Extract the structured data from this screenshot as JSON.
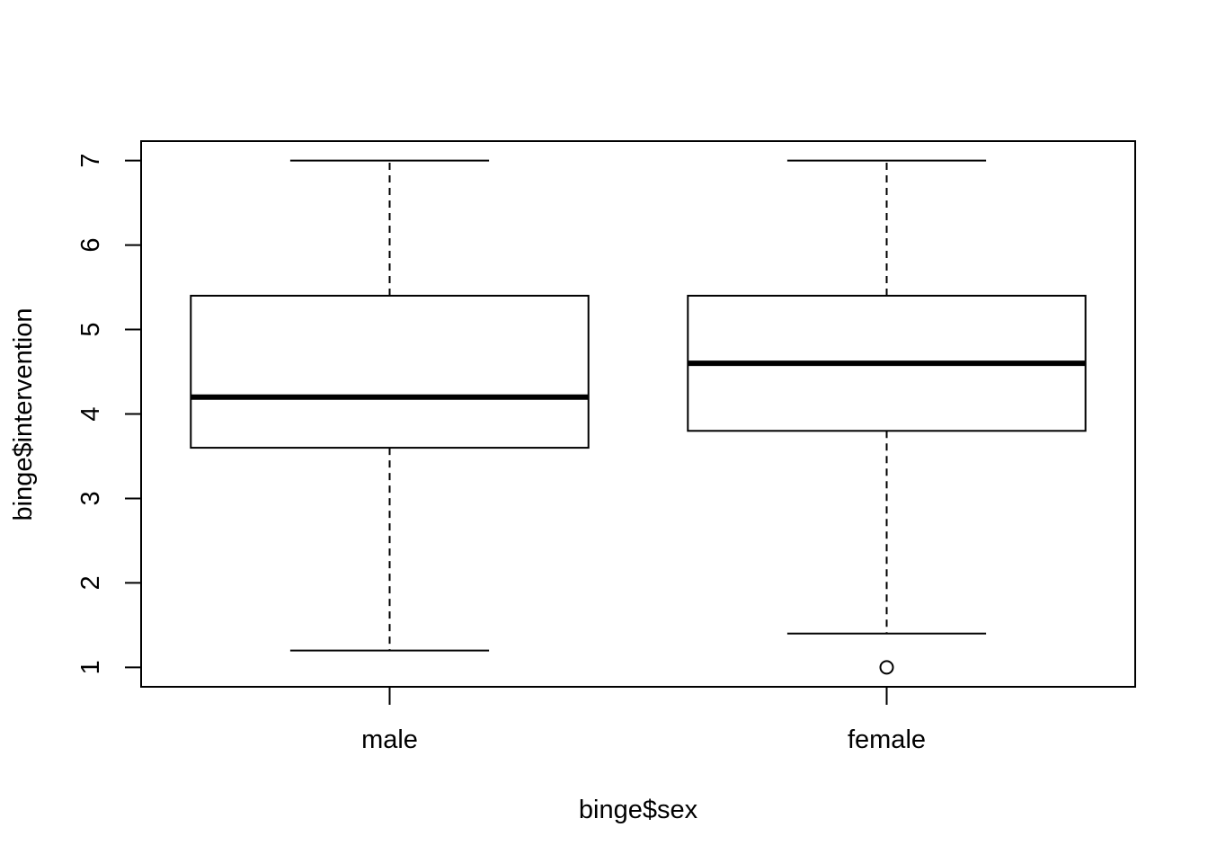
{
  "chart_data": {
    "type": "boxplot",
    "title": "",
    "xlabel": "binge$sex",
    "ylabel": "binge$intervention",
    "categories": [
      "male",
      "female"
    ],
    "ylim": [
      0.77,
      7.23
    ],
    "yticks": [
      "1",
      "2",
      "3",
      "4",
      "5",
      "6",
      "7"
    ],
    "grid": false,
    "boxes": [
      {
        "name": "male",
        "whisker_low": 1.2,
        "q1": 3.6,
        "median": 4.2,
        "q3": 5.4,
        "whisker_high": 7.0,
        "outliers": []
      },
      {
        "name": "female",
        "whisker_low": 1.4,
        "q1": 3.8,
        "median": 4.6,
        "q3": 5.4,
        "whisker_high": 7.0,
        "outliers": [
          1.0
        ]
      }
    ]
  }
}
